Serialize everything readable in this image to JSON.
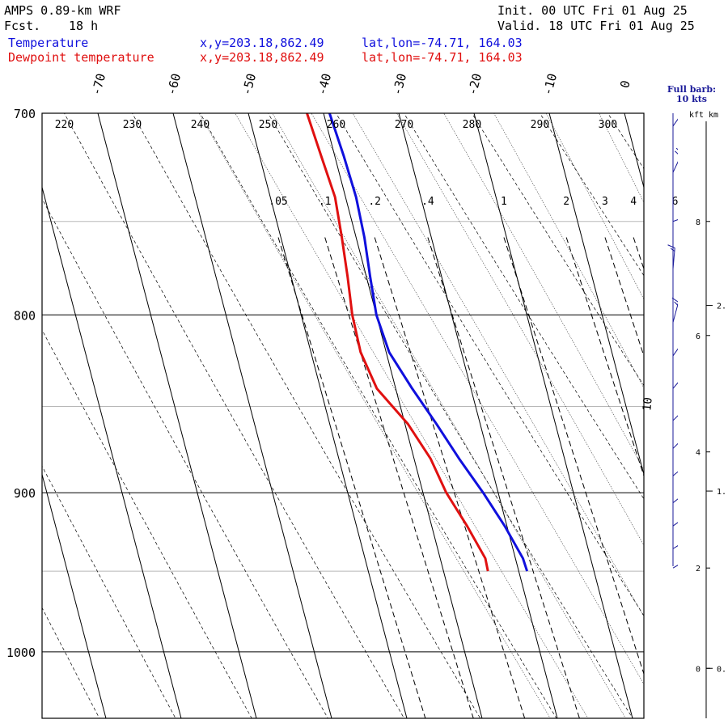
{
  "header": {
    "model": "AMPS 0.89-km WRF",
    "fcst_label": "Fcst.",
    "fcst_hours": "18 h",
    "init": "Init. 00 UTC Fri 01 Aug 25",
    "valid": "Valid. 18 UTC Fri 01 Aug 25"
  },
  "legend": [
    {
      "name": "Temperature",
      "xy": "x,y=203.18,862.49",
      "latlon": "lat,lon=-74.71, 164.03",
      "color": "#1010dd"
    },
    {
      "name": "Dewpoint temperature",
      "xy": "x,y=203.18,862.49",
      "latlon": "lat,lon=-74.71, 164.03",
      "color": "#e01010"
    }
  ],
  "barb_note": {
    "line1": "Full barb:",
    "line2": "10 kts"
  },
  "height_axis": {
    "units": "kft km",
    "kft_ticks": [
      {
        "value": 8,
        "label": "8",
        "p": 752
      },
      {
        "value": 6,
        "label": "6",
        "p": 811
      },
      {
        "value": 4,
        "label": "4",
        "p": 876
      },
      {
        "value": 2,
        "label": "2",
        "p": 946
      },
      {
        "value": 0,
        "label": "0",
        "p": 1011
      }
    ],
    "km_ticks": [
      {
        "label": "2.",
        "p": 795
      },
      {
        "label": "1.",
        "p": 899
      },
      {
        "label": "0.",
        "p": 1011
      }
    ]
  },
  "chart_data": {
    "type": "line",
    "diagram": "skew-T log-p",
    "y_axis": {
      "quantity": "pressure (hPa)",
      "range": [
        1045,
        700
      ],
      "scale": "log",
      "ticks": [
        700,
        800,
        900,
        1000
      ]
    },
    "x_axis": {
      "quantity": "temperature (°C)",
      "bottom_range_at_p700": [
        -76,
        0
      ]
    },
    "temperature_labels": [
      -70,
      -60,
      -50,
      -40,
      -30,
      -20,
      -10,
      0
    ],
    "potential_temperature_labels": [
      220,
      230,
      240,
      250,
      260,
      270,
      280,
      290,
      300
    ],
    "mixing_ratio_labels": [
      ".05",
      ".1",
      ".2",
      ".4",
      "1",
      "2",
      "3",
      "4",
      "6"
    ],
    "mixing_ratio_values": [
      0.05,
      0.1,
      0.2,
      0.4,
      1,
      2,
      3,
      4,
      6
    ],
    "moist_adiabat_label": "10",
    "series": [
      {
        "name": "Temperature",
        "color": "#1010dd",
        "points": [
          {
            "p": 700,
            "t": -39.2
          },
          {
            "p": 720,
            "t": -38.8
          },
          {
            "p": 740,
            "t": -38.6
          },
          {
            "p": 760,
            "t": -38.9
          },
          {
            "p": 780,
            "t": -39.5
          },
          {
            "p": 800,
            "t": -40.0
          },
          {
            "p": 820,
            "t": -39.6
          },
          {
            "p": 840,
            "t": -37.8
          },
          {
            "p": 860,
            "t": -35.8
          },
          {
            "p": 880,
            "t": -34.0
          },
          {
            "p": 900,
            "t": -32.0
          },
          {
            "p": 920,
            "t": -30.3
          },
          {
            "p": 940,
            "t": -29.0
          },
          {
            "p": 948,
            "t": -28.9
          }
        ]
      },
      {
        "name": "Dewpoint temperature",
        "color": "#e01010",
        "points": [
          {
            "p": 700,
            "t": -42.2
          },
          {
            "p": 720,
            "t": -41.8
          },
          {
            "p": 740,
            "t": -41.4
          },
          {
            "p": 760,
            "t": -41.9
          },
          {
            "p": 780,
            "t": -42.5
          },
          {
            "p": 800,
            "t": -43.2
          },
          {
            "p": 820,
            "t": -43.4
          },
          {
            "p": 840,
            "t": -42.5
          },
          {
            "p": 860,
            "t": -39.6
          },
          {
            "p": 880,
            "t": -37.8
          },
          {
            "p": 900,
            "t": -36.9
          },
          {
            "p": 920,
            "t": -35.3
          },
          {
            "p": 940,
            "t": -34.0
          },
          {
            "p": 948,
            "t": -34.1
          }
        ]
      }
    ],
    "wind_barbs": [
      {
        "p": 706,
        "speed_kt": 25,
        "dir_deg": 215
      },
      {
        "p": 728,
        "speed_kt": 20,
        "dir_deg": 205
      },
      {
        "p": 752,
        "speed_kt": 10,
        "dir_deg": 250
      },
      {
        "p": 776,
        "speed_kt": 15,
        "dir_deg": 185
      },
      {
        "p": 804,
        "speed_kt": 15,
        "dir_deg": 195
      },
      {
        "p": 822,
        "speed_kt": 25,
        "dir_deg": 215
      },
      {
        "p": 840,
        "speed_kt": 30,
        "dir_deg": 220
      },
      {
        "p": 858,
        "speed_kt": 30,
        "dir_deg": 225
      },
      {
        "p": 874,
        "speed_kt": 35,
        "dir_deg": 225
      },
      {
        "p": 890,
        "speed_kt": 35,
        "dir_deg": 230
      },
      {
        "p": 906,
        "speed_kt": 35,
        "dir_deg": 232
      },
      {
        "p": 920,
        "speed_kt": 30,
        "dir_deg": 235
      },
      {
        "p": 934,
        "speed_kt": 30,
        "dir_deg": 238
      },
      {
        "p": 946,
        "speed_kt": 25,
        "dir_deg": 240
      }
    ]
  }
}
